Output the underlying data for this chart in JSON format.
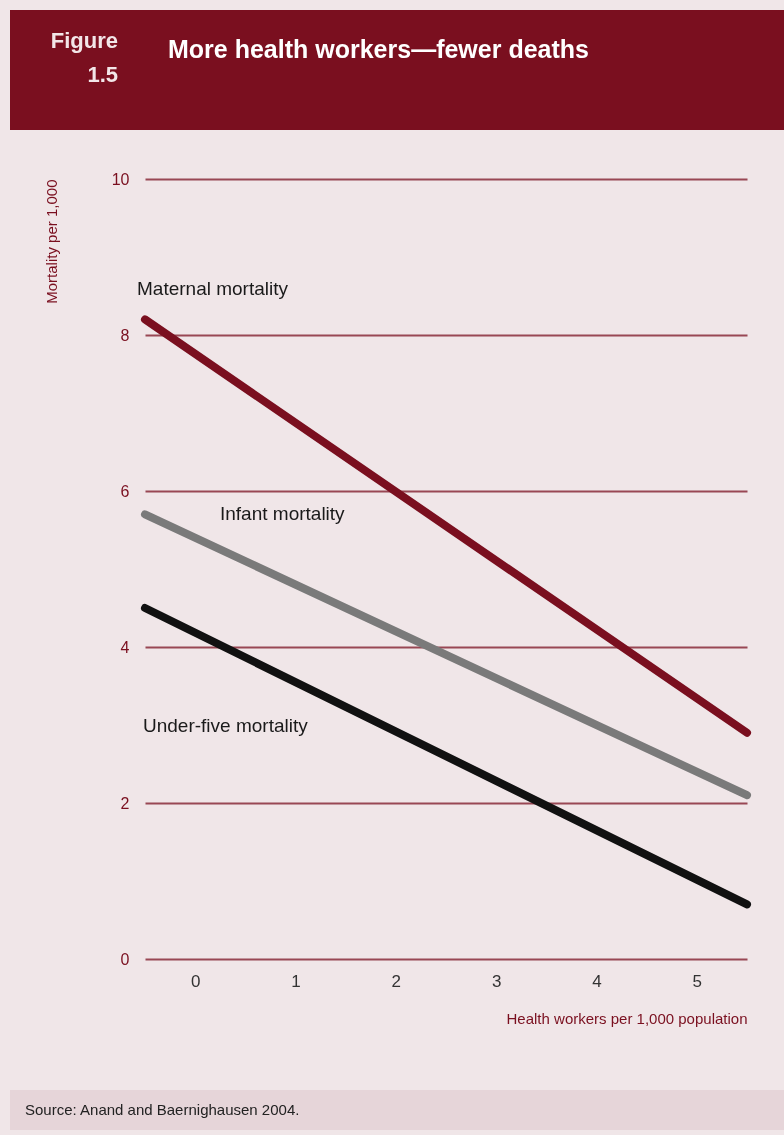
{
  "chart_data": {
    "type": "line",
    "title": "More health workers—fewer deaths",
    "xlabel": "Health workers per 1,000 population",
    "ylabel": "Mortality per 1,000",
    "x": [
      -0.5,
      5.5
    ],
    "series": [
      {
        "name": "Maternal mortality",
        "color": "#7a0f1f",
        "values": [
          8.2,
          2.9
        ]
      },
      {
        "name": "Infant mortality",
        "color": "#7a7a7a",
        "values": [
          5.7,
          2.1
        ]
      },
      {
        "name": "Under-five mortality",
        "color": "#111111",
        "values": [
          4.5,
          0.7
        ]
      }
    ],
    "xlim": [
      -0.5,
      5.5
    ],
    "xticks": [
      0,
      1,
      2,
      3,
      4,
      5
    ],
    "ylim": [
      0,
      10
    ],
    "yticks": [
      0,
      2,
      4,
      6,
      8,
      10
    ],
    "grid": "y",
    "line_style": "solid",
    "annotations": [
      "Figure 1.5",
      "Source: Anand and Baernighausen 2004."
    ]
  }
}
